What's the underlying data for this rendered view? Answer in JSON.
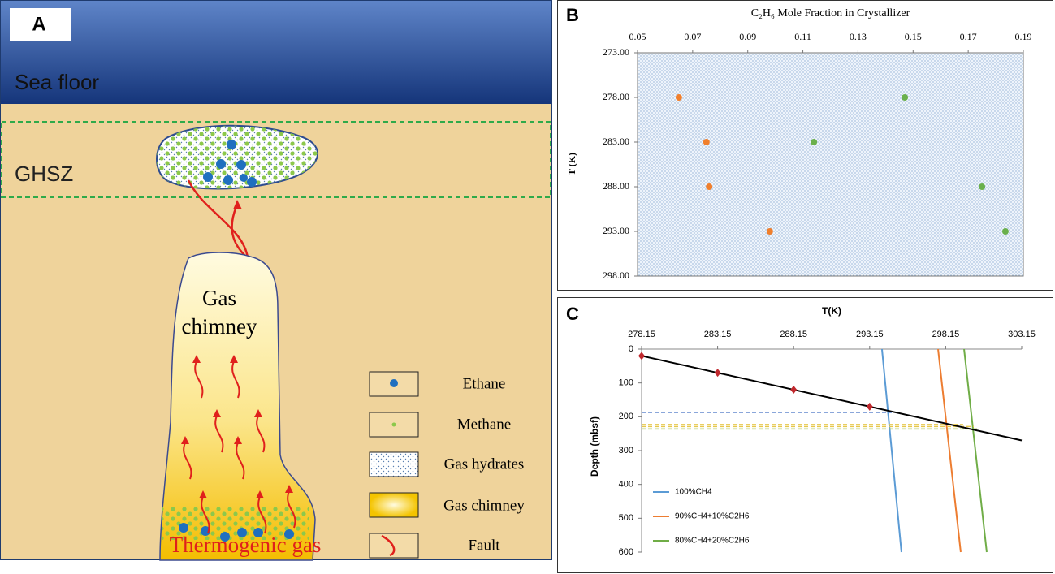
{
  "panel_a": {
    "label": "A",
    "sea_floor": "Sea floor",
    "zone": "GHSZ",
    "chimney": [
      "Gas",
      "chimney"
    ],
    "source": "Thermogenic gas",
    "legend": [
      "Ethane",
      "Methane",
      "Gas hydrates",
      "Gas chimney",
      "Fault"
    ]
  },
  "chart_data": [
    {
      "type": "scatter",
      "label": "B",
      "title": "C₂H₆ Mole Fraction in Crystallizer",
      "y_label": "T (K)",
      "xlim": [
        0.05,
        0.19
      ],
      "xticks": [
        0.05,
        0.07,
        0.09,
        0.11,
        0.13,
        0.15,
        0.17,
        0.19
      ],
      "ylim": [
        298,
        273
      ],
      "yticks": [
        {
          "value": 273,
          "label": "273.00"
        },
        {
          "value": 278,
          "label": "278.00"
        },
        {
          "value": 283,
          "label": "283.00"
        },
        {
          "value": 288,
          "label": "288.00"
        },
        {
          "value": 293,
          "label": "293.00"
        },
        {
          "value": 298,
          "label": "298.00"
        }
      ],
      "series": [
        {
          "color": "#f07f2c",
          "x": [
            0.065,
            0.075,
            0.076,
            0.098
          ],
          "values": [
            278,
            283,
            288,
            293
          ]
        },
        {
          "color": "#6ab04c",
          "x": [
            0.147,
            0.114,
            0.175,
            0.1835
          ],
          "values": [
            278,
            283,
            288,
            293
          ]
        }
      ]
    },
    {
      "type": "line",
      "label": "C",
      "title": "T(K)",
      "y_label": "Depth (mbsf)",
      "xlim": [
        278.15,
        303.15
      ],
      "xticks": [
        278.15,
        283.15,
        288.15,
        293.15,
        298.15,
        303.15
      ],
      "ylim": [
        600,
        0
      ],
      "yticks": [
        0,
        100,
        200,
        300,
        400,
        500,
        600
      ],
      "legend": "lower left",
      "series": [
        {
          "name": "100%CH4",
          "color": "#5b9bd5",
          "x": [
            293.96,
            295.24
          ],
          "values": [
            0,
            600
          ]
        },
        {
          "name": "90%CH4+10%C2H6",
          "color": "#ed7d31",
          "x": [
            297.65,
            299.14
          ],
          "values": [
            0,
            600
          ]
        },
        {
          "name": "80%CH4+20%C2H6",
          "color": "#70ad47",
          "x": [
            299.36,
            300.85
          ],
          "values": [
            0,
            600
          ]
        },
        {
          "color": "#4472c4",
          "dashed": true,
          "x": [
            278.15,
            294.6
          ],
          "values": [
            187,
            187
          ]
        },
        {
          "color": "#e6c84b",
          "dashed": true,
          "x": [
            278.15,
            299.3
          ],
          "values": [
            223,
            223
          ]
        },
        {
          "color": "#e6c84b",
          "dashed": true,
          "x": [
            278.15,
            300.0
          ],
          "values": [
            229,
            229
          ]
        },
        {
          "color": "#a8c44e",
          "dashed": true,
          "x": [
            278.15,
            300.3
          ],
          "values": [
            236,
            236
          ]
        },
        {
          "color": "#000000",
          "x": [
            278.15,
            303.15
          ],
          "values": [
            20,
            270
          ]
        },
        {
          "color": "#c0282d",
          "line": false,
          "marker": "diamond",
          "x": [
            278.15,
            283.15,
            288.15,
            293.15
          ],
          "values": [
            20,
            70,
            120,
            170
          ]
        }
      ]
    }
  ]
}
